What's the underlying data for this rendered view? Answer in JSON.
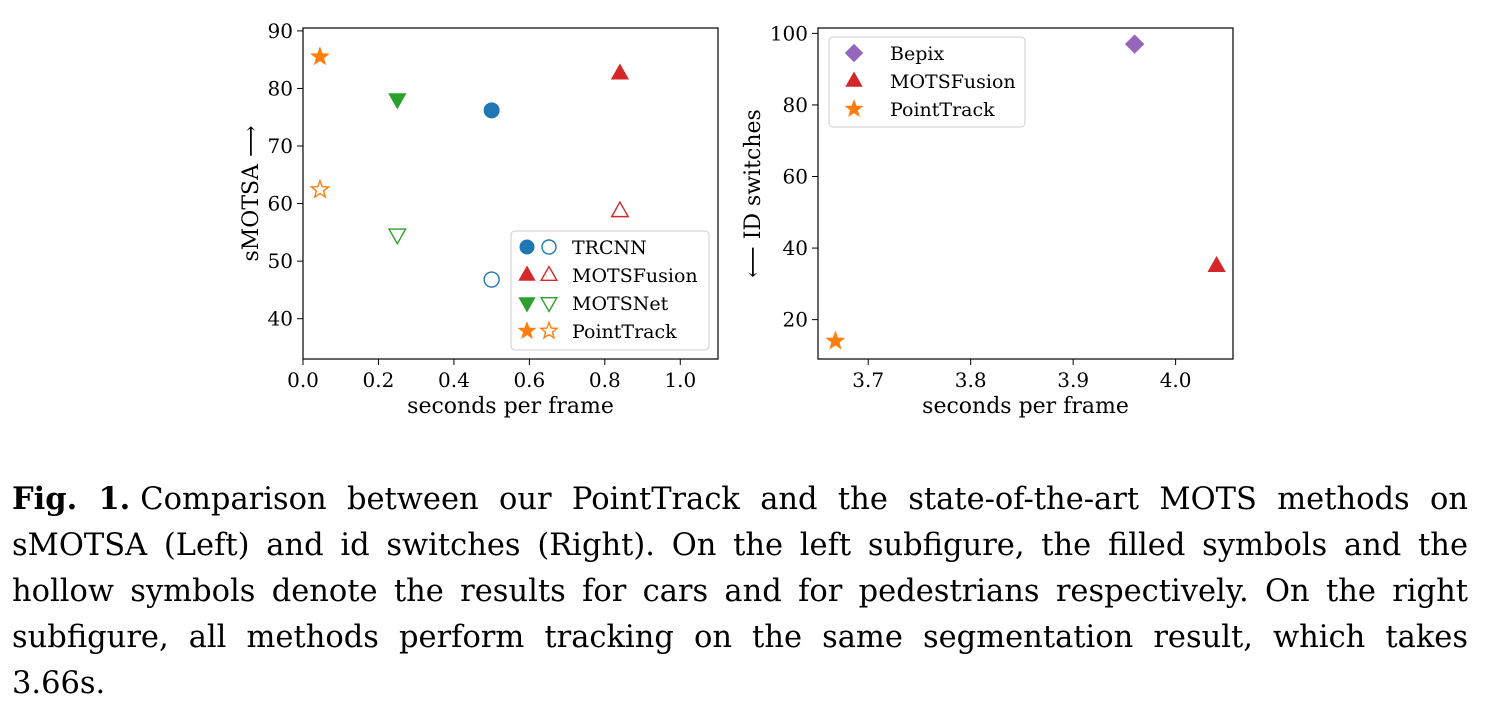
{
  "chart_data": [
    {
      "type": "scatter",
      "xlabel": "seconds per frame",
      "ylabel": "sMOTSA ⟶",
      "xlim": [
        0.0,
        1.1
      ],
      "ylim": [
        33,
        90.5
      ],
      "xticks": [
        0.0,
        0.2,
        0.4,
        0.6,
        0.8,
        1.0
      ],
      "xtick_labels": [
        "0.0",
        "0.2",
        "0.4",
        "0.6",
        "0.8",
        "1.0"
      ],
      "yticks": [
        40,
        50,
        60,
        70,
        80,
        90
      ],
      "ytick_labels": [
        "40",
        "50",
        "60",
        "70",
        "80",
        "90"
      ],
      "grid": false,
      "legend_position": "lower-right",
      "series": [
        {
          "name": "TRCNN",
          "color": "#1f77b4",
          "marker": "circle",
          "points": [
            {
              "x": 0.5,
              "y": 76.2,
              "filled": true
            },
            {
              "x": 0.5,
              "y": 46.8,
              "filled": false
            }
          ]
        },
        {
          "name": "MOTSFusion",
          "color": "#d62728",
          "marker": "triangle-up",
          "points": [
            {
              "x": 0.84,
              "y": 82.6,
              "filled": true
            },
            {
              "x": 0.84,
              "y": 58.7,
              "filled": false
            }
          ]
        },
        {
          "name": "MOTSNet",
          "color": "#2ca02c",
          "marker": "triangle-down",
          "points": [
            {
              "x": 0.25,
              "y": 78.1,
              "filled": true
            },
            {
              "x": 0.25,
              "y": 54.6,
              "filled": false
            }
          ]
        },
        {
          "name": "PointTrack",
          "color": "#ff7f0e",
          "marker": "star",
          "points": [
            {
              "x": 0.045,
              "y": 85.5,
              "filled": true
            },
            {
              "x": 0.045,
              "y": 62.4,
              "filled": false
            }
          ]
        }
      ]
    },
    {
      "type": "scatter",
      "xlabel": "seconds per frame",
      "ylabel": "⟵ ID switches",
      "xlim": [
        3.651,
        4.056
      ],
      "ylim": [
        9,
        101.5
      ],
      "xticks": [
        3.7,
        3.8,
        3.9,
        4.0
      ],
      "xtick_labels": [
        "3.7",
        "3.8",
        "3.9",
        "4.0"
      ],
      "yticks": [
        20,
        40,
        60,
        80,
        100
      ],
      "ytick_labels": [
        "20",
        "40",
        "60",
        "80",
        "100"
      ],
      "grid": false,
      "legend_position": "top-left",
      "series": [
        {
          "name": "Bepix",
          "color": "#9467bd",
          "marker": "diamond",
          "points": [
            {
              "x": 3.96,
              "y": 97,
              "filled": true
            }
          ]
        },
        {
          "name": "MOTSFusion",
          "color": "#d62728",
          "marker": "triangle-up",
          "points": [
            {
              "x": 4.04,
              "y": 35,
              "filled": true
            }
          ]
        },
        {
          "name": "PointTrack",
          "color": "#ff7f0e",
          "marker": "star",
          "points": [
            {
              "x": 3.668,
              "y": 14,
              "filled": true
            }
          ]
        }
      ]
    }
  ],
  "caption": {
    "label": "Fig. 1.",
    "text": "Comparison between our PointTrack and the state-of-the-art MOTS methods on sMOTSA (Left) and id switches (Right). On the left subfigure, the filled symbols and the hollow symbols denote the results for cars and for pedestrians respectively. On the right subfigure, all methods perform tracking on the same segmentation result, which takes 3.66s."
  }
}
